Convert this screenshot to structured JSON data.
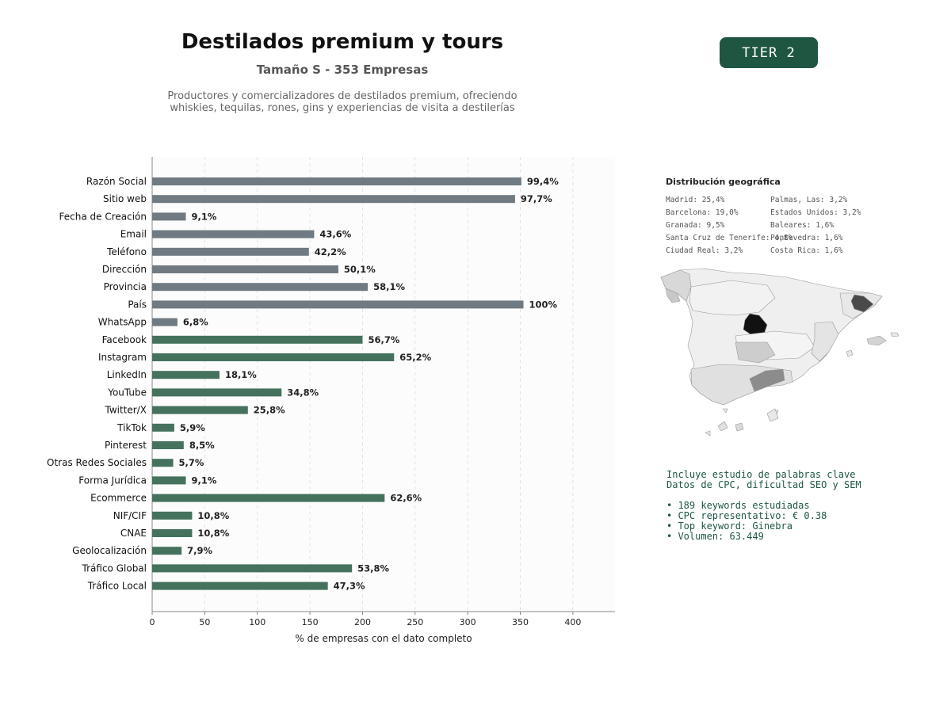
{
  "header": {
    "title": "Destilados premium y tours",
    "subtitle": "Tamaño S - 353 Empresas",
    "description_line1": "Productores y comercializadores de destilados premium, ofreciendo",
    "description_line2": "whiskies, tequilas, rones, gins y experiencias de visita a destilerías",
    "tier": "TIER 2"
  },
  "colors": {
    "bar_gray": "#6f7a82",
    "bar_green": "#44725d",
    "accent": "#1e5641",
    "map_top": "#111111",
    "map_high": "#4a4a4a",
    "map_mid": "#8c8c8c",
    "map_low": "#cfcfcf",
    "map_base": "#efefef"
  },
  "chart_data": {
    "type": "bar",
    "orientation": "horizontal",
    "xlabel": "% de empresas con el dato completo",
    "xlim": [
      0,
      440
    ],
    "xticks": [
      0,
      50,
      100,
      150,
      200,
      250,
      300,
      350,
      400
    ],
    "grid": "vertical dashed",
    "categories": [
      "Razón Social",
      "Sitio web",
      "Fecha de Creación",
      "Email",
      "Teléfono",
      "Dirección",
      "Provincia",
      "País",
      "WhatsApp",
      "Facebook",
      "Instagram",
      "LinkedIn",
      "YouTube",
      "Twitter/X",
      "TikTok",
      "Pinterest",
      "Otras Redes Sociales",
      "Forma Jurídica",
      "Ecommerce",
      "NIF/CIF",
      "CNAE",
      "Geolocalización",
      "Tráfico Global",
      "Tráfico Local"
    ],
    "values": [
      351,
      345,
      32,
      154,
      149,
      177,
      205,
      353,
      24,
      200,
      230,
      64,
      123,
      91,
      21,
      30,
      20,
      32,
      221,
      38,
      38,
      28,
      190,
      167
    ],
    "labels": [
      "99,4%",
      "97,7%",
      "9,1%",
      "43,6%",
      "42,2%",
      "50,1%",
      "58,1%",
      "100%",
      "6,8%",
      "56,7%",
      "65,2%",
      "18,1%",
      "34,8%",
      "25,8%",
      "5,9%",
      "8,5%",
      "5,7%",
      "9,1%",
      "62,6%",
      "10,8%",
      "10,8%",
      "7,9%",
      "53,8%",
      "47,3%"
    ],
    "groups": [
      "gray",
      "gray",
      "gray",
      "gray",
      "gray",
      "gray",
      "gray",
      "gray",
      "gray",
      "green",
      "green",
      "green",
      "green",
      "green",
      "green",
      "green",
      "green",
      "green",
      "green",
      "green",
      "green",
      "green",
      "green",
      "green"
    ]
  },
  "geo": {
    "title": "Distribución geográfica",
    "col1": [
      "Madrid: 25,4%",
      "Barcelona: 19,0%",
      "Granada: 9,5%",
      "Santa Cruz de Tenerife: 4,8%",
      "Ciudad Real: 3,2%"
    ],
    "col2": [
      "Palmas, Las: 3,2%",
      "Estados Unidos: 3,2%",
      "Baleares: 1,6%",
      "Pontevedra: 1,6%",
      "Costa Rica: 1,6%"
    ]
  },
  "keywords": {
    "line1": "Incluye estudio de palabras clave",
    "line2": "Datos de CPC, dificultad SEO y SEM",
    "bullets": [
      "• 189 keywords estudiadas",
      "• CPC representativo: € 0.38",
      "• Top keyword: Ginebra",
      "• Volumen: 63.449"
    ]
  }
}
